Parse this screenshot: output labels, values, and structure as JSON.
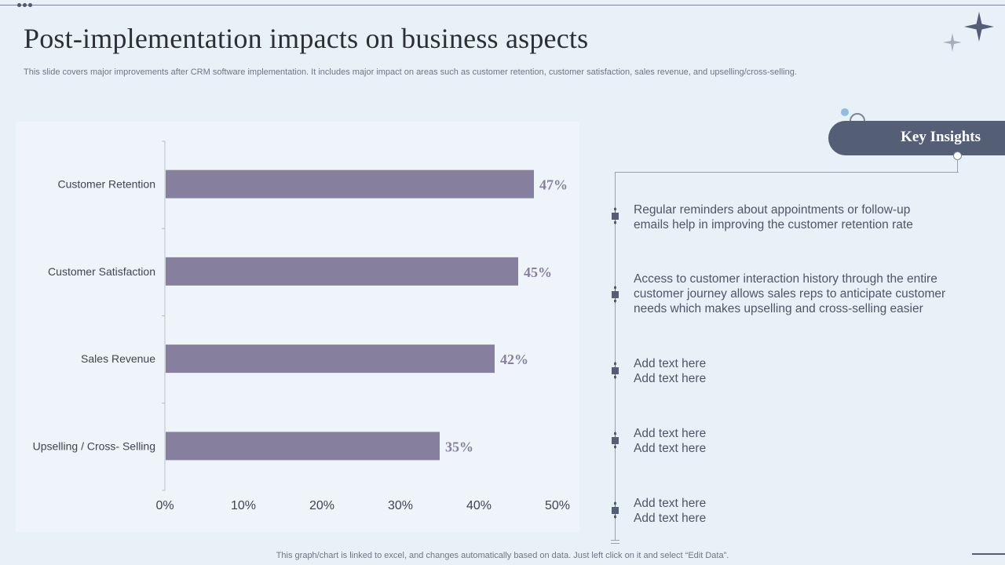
{
  "slide": {
    "title": "Post-implementation impacts on business aspects",
    "subtitle": "This slide covers major improvements after CRM software implementation. It includes major impact on areas such as customer retention, customer satisfaction, sales revenue, and upselling/cross-selling.",
    "footer": "This graph/chart is linked to excel,  and changes automatically based on data. Just left click on it and select “Edit Data”."
  },
  "insights": {
    "heading": "Key Insights",
    "items": [
      {
        "line1": "Regular reminders about appointments or follow-up",
        "line2": "emails help in improving the customer retention rate",
        "line3": ""
      },
      {
        "line1": "Access to customer interaction history through the entire",
        "line2": "customer journey allows sales reps to anticipate customer",
        "line3": "needs which makes upselling and cross-selling easier"
      },
      {
        "line1": "Add text here",
        "line2": "Add text here",
        "line3": ""
      },
      {
        "line1": "Add text here",
        "line2": "Add text here",
        "line3": ""
      },
      {
        "line1": "Add text here",
        "line2": "Add text here",
        "line3": ""
      }
    ]
  },
  "colors": {
    "bar": "#86809e",
    "label": "#86809e",
    "accent": "#545f75",
    "background": "#e9f1f8"
  },
  "chart_data": {
    "type": "bar",
    "orientation": "horizontal",
    "categories": [
      "Customer Retention",
      "Customer Satisfaction",
      "Sales Revenue",
      "Upselling / Cross- Selling"
    ],
    "values": [
      47,
      45,
      42,
      35
    ],
    "data_labels": [
      "47%",
      "45%",
      "42%",
      "35%"
    ],
    "x_ticks": [
      "0%",
      "10%",
      "20%",
      "30%",
      "40%",
      "50%"
    ],
    "xlim": [
      0,
      50
    ],
    "grid": false,
    "legend": "none"
  }
}
